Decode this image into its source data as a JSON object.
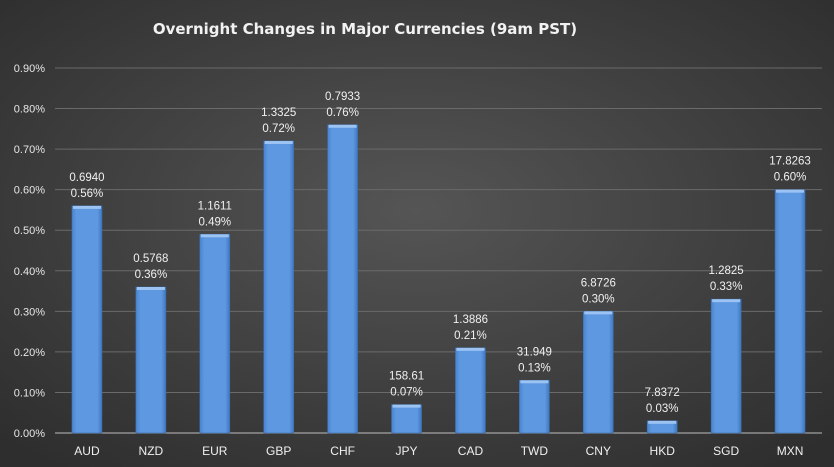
{
  "chart_data": {
    "type": "bar",
    "title": "Overnight Changes in Major Currencies (9am PST)",
    "xlabel": "",
    "ylabel": "",
    "ylim": [
      0,
      0.9
    ],
    "yticks": [
      "0.00%",
      "0.10%",
      "0.20%",
      "0.30%",
      "0.40%",
      "0.50%",
      "0.60%",
      "0.70%",
      "0.80%",
      "0.90%"
    ],
    "grid": true,
    "categories": [
      "AUD",
      "NZD",
      "EUR",
      "GBP",
      "CHF",
      "JPY",
      "CAD",
      "TWD",
      "CNY",
      "HKD",
      "SGD",
      "MXN"
    ],
    "values": [
      0.56,
      0.36,
      0.49,
      0.72,
      0.76,
      0.07,
      0.21,
      0.13,
      0.3,
      0.03,
      0.33,
      0.6
    ],
    "value_labels": [
      "0.56%",
      "0.36%",
      "0.49%",
      "0.72%",
      "0.76%",
      "0.07%",
      "0.21%",
      "0.13%",
      "0.30%",
      "0.03%",
      "0.33%",
      "0.60%"
    ],
    "rate_labels": [
      "0.6940",
      "0.5768",
      "1.1611",
      "1.3325",
      "0.7933",
      "158.61",
      "1.3886",
      "31.949",
      "6.8726",
      "7.8372",
      "1.2825",
      "17.8263"
    ],
    "colors": {
      "bar": "#5b94dc",
      "background": "#4a4a4a"
    }
  }
}
